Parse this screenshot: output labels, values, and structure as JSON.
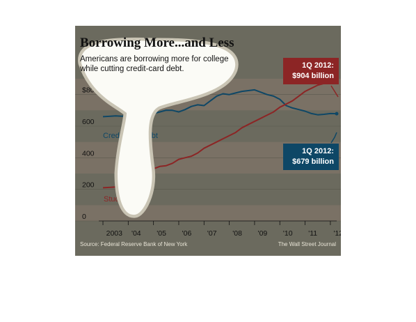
{
  "chart_data": {
    "type": "line",
    "title": "Borrowing More...and Less",
    "subtitle": "Americans are borrowing more for college while cutting credit-card debt.",
    "x_ticks": [
      "2003",
      "'04",
      "'05",
      "'06",
      "'07",
      "'08",
      "'09",
      "'10",
      "'11",
      "'12"
    ],
    "y_ticks": [
      "0",
      "200",
      "400",
      "600",
      "$800 billion"
    ],
    "ylim": [
      0,
      900
    ],
    "xlim": [
      2003,
      2012.25
    ],
    "series": [
      {
        "name": "Credit-card debt",
        "color": "#0e4766",
        "x": [
          2003.0,
          2003.25,
          2003.5,
          2003.75,
          2004.0,
          2004.25,
          2004.5,
          2004.75,
          2005.0,
          2005.25,
          2005.5,
          2005.75,
          2006.0,
          2006.25,
          2006.5,
          2006.75,
          2007.0,
          2007.25,
          2007.5,
          2007.75,
          2008.0,
          2008.25,
          2008.5,
          2008.75,
          2009.0,
          2009.25,
          2009.5,
          2009.75,
          2010.0,
          2010.25,
          2010.5,
          2010.75,
          2011.0,
          2011.25,
          2011.5,
          2011.75,
          2012.0,
          2012.25
        ],
        "values": [
          660,
          662,
          665,
          663,
          666,
          670,
          665,
          676,
          680,
          690,
          701,
          700,
          690,
          705,
          725,
          735,
          730,
          760,
          790,
          805,
          800,
          810,
          820,
          825,
          830,
          815,
          800,
          790,
          770,
          730,
          715,
          705,
          695,
          680,
          672,
          675,
          680,
          679
        ]
      },
      {
        "name": "Student debt",
        "color": "#8c2525",
        "x": [
          2003.0,
          2003.25,
          2003.5,
          2003.75,
          2004.0,
          2004.25,
          2004.5,
          2004.75,
          2005.0,
          2005.25,
          2005.5,
          2005.75,
          2006.0,
          2006.25,
          2006.5,
          2006.75,
          2007.0,
          2007.25,
          2007.5,
          2007.75,
          2008.0,
          2008.25,
          2008.5,
          2008.75,
          2009.0,
          2009.25,
          2009.5,
          2009.75,
          2010.0,
          2010.25,
          2010.5,
          2010.75,
          2011.0,
          2011.25,
          2011.5,
          2011.75,
          2012.0,
          2012.25
        ],
        "values": [
          210,
          212,
          215,
          220,
          230,
          240,
          300,
          320,
          330,
          345,
          350,
          365,
          390,
          400,
          410,
          430,
          460,
          480,
          500,
          520,
          540,
          560,
          590,
          610,
          630,
          650,
          670,
          690,
          720,
          740,
          760,
          790,
          820,
          840,
          860,
          870,
          880,
          904
        ]
      }
    ],
    "annotations": [
      {
        "id": "student",
        "text": "Student debt"
      },
      {
        "id": "credit",
        "text": "Credit-card debt"
      }
    ],
    "callouts": [
      {
        "line1": "1Q 2012:",
        "line2": "$904 billion"
      },
      {
        "line1": "1Q 2012:",
        "line2": "$679 billion"
      }
    ],
    "source": "Source: Federal Reserve Bank of New York",
    "credit": "The Wall Street Journal"
  },
  "colors": {
    "panel_background": "#6b6a5e",
    "shaded_band": "#7a7165",
    "overlay_highlight": "#fbfbf6",
    "overlay_ring": "#c9c4b4"
  },
  "overlay": {
    "description_icon": "white-blob-annotation-mark"
  }
}
